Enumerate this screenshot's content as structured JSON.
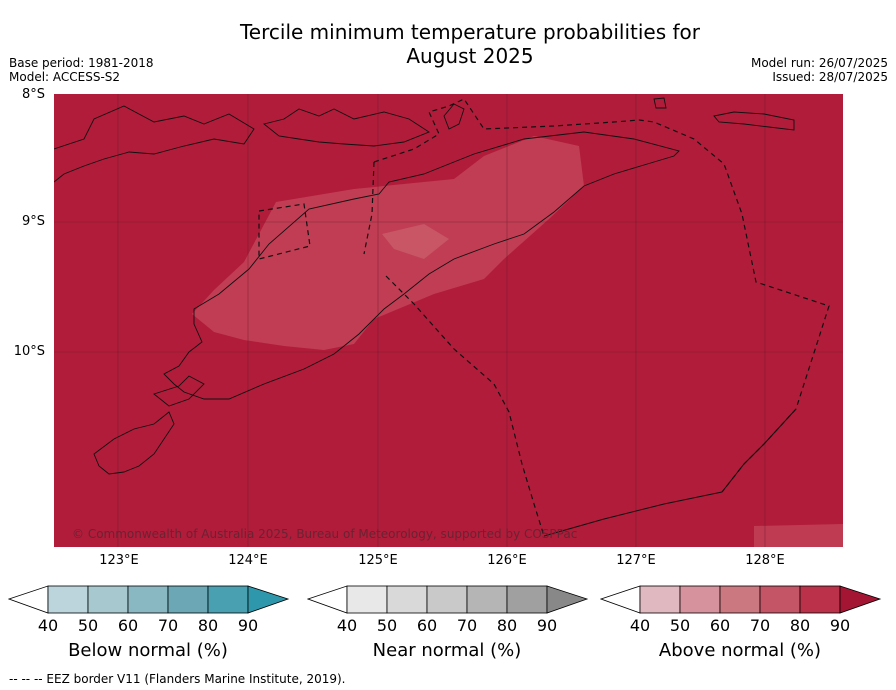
{
  "title_line1": "Tercile minimum temperature probabilities for",
  "title_line2": "August 2025",
  "meta_left": {
    "base_period": "Base period: 1981-2018",
    "model": "Model: ACCESS-S2"
  },
  "meta_right": {
    "model_run": "Model run: 26/07/2025",
    "issued": "Issued: 28/07/2025"
  },
  "lat_labels": [
    "8°S",
    "9°S",
    "10°S"
  ],
  "lon_labels": [
    "123°E",
    "124°E",
    "125°E",
    "126°E",
    "127°E",
    "128°E"
  ],
  "copyright": "© Commonwealth of Australia 2025, Bureau of Meteorology, supported by COSPPac",
  "colors": {
    "above_90": "#b11c3a",
    "above_80": "#bf3b52",
    "below": [
      "#ffffff",
      "#bcd4db",
      "#a6c8ce",
      "#8ab8c2",
      "#6ba7b4",
      "#48a0b0",
      "#2f97ab"
    ],
    "near": [
      "#ffffff",
      "#e8e8e8",
      "#d9d9d9",
      "#c9c9c9",
      "#b5b5b5",
      "#a0a0a0",
      "#888888"
    ],
    "above": [
      "#ffffff",
      "#e0b8bf",
      "#d6939d",
      "#cc7880",
      "#c45566",
      "#bb3149",
      "#a31533"
    ]
  },
  "colorbars": [
    {
      "name": "below",
      "label": "Below normal (%)",
      "ticks": [
        "40",
        "50",
        "60",
        "70",
        "80",
        "90"
      ]
    },
    {
      "name": "near",
      "label": "Near normal (%)",
      "ticks": [
        "40",
        "50",
        "60",
        "70",
        "80",
        "90"
      ]
    },
    {
      "name": "above",
      "label": "Above normal (%)",
      "ticks": [
        "40",
        "50",
        "60",
        "70",
        "80",
        "90"
      ]
    }
  ],
  "footer": "--  --  -- EEZ border V11 (Flanders Marine Institute, 2019)."
}
